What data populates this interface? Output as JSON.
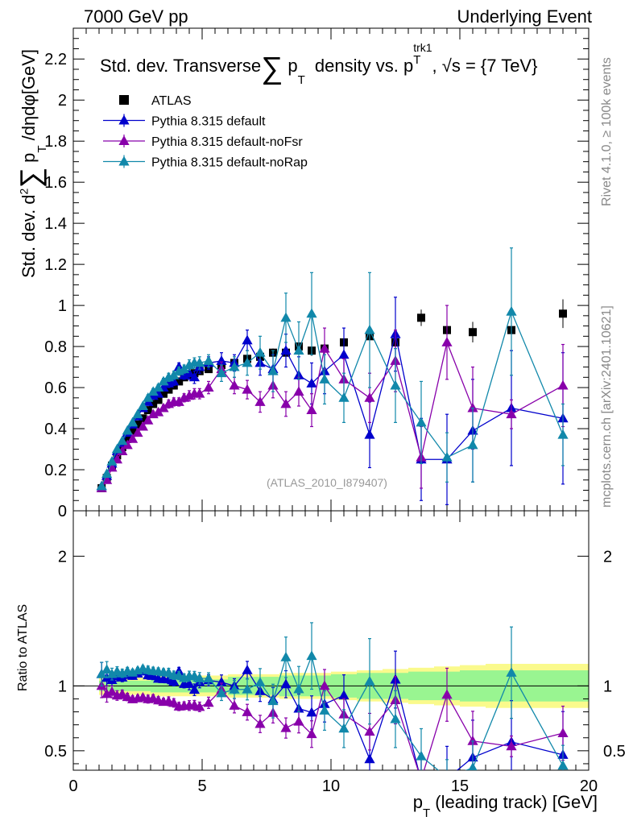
{
  "header": {
    "left_label": "7000 GeV pp",
    "right_label": "Underlying Event"
  },
  "side_labels": {
    "rivet": "Rivet 4.1.0, ≥ 100k events",
    "mcplots": "mcplots.cern.ch [arXiv:2401.10621]"
  },
  "chart_data": [
    {
      "type": "scatter",
      "panel": "main",
      "title": "Std. dev. Transverse ∑ p_T density vs. p_T^trk1, √s = {7 TeV}",
      "title_parts": {
        "a": "Std. dev. Transverse",
        "sum": "∑",
        "p": "p",
        "sub": "T",
        "b": "density vs. p",
        "sup2": "trk1",
        "sub2": "T",
        "c": ", √s = {7 TeV}"
      },
      "ylabel": "Std. dev. d² ∑ p_T /dηdφ[GeV]",
      "ylabel_parts": {
        "a": "Std. dev. d",
        "sup": "2",
        "sum": "∑",
        "p": "p",
        "sub": "T",
        "b": "/dηdφ[GeV]"
      },
      "xlim": [
        0,
        20
      ],
      "ylim": [
        0,
        2.35
      ],
      "yticks": [
        0,
        0.2,
        0.4,
        0.6,
        0.8,
        1,
        1.2,
        1.4,
        1.6,
        1.8,
        2,
        2.2
      ],
      "ytick_labels": [
        "0",
        "0.2",
        "0.4",
        "0.6",
        "0.8",
        "1",
        "1.2",
        "1.4",
        "1.6",
        "1.8",
        "2",
        "2.2"
      ],
      "watermark": "(ATLAS_2010_I879407)",
      "legend_position": "top-left",
      "series": [
        {
          "name": "ATLAS",
          "color": "#000000",
          "marker": "square",
          "x": [
            1.1,
            1.3,
            1.5,
            1.7,
            1.9,
            2.1,
            2.3,
            2.5,
            2.7,
            2.9,
            3.1,
            3.3,
            3.5,
            3.7,
            3.9,
            4.1,
            4.3,
            4.5,
            4.7,
            4.9,
            5.25,
            5.75,
            6.25,
            6.75,
            7.25,
            7.75,
            8.25,
            8.75,
            9.25,
            9.75,
            10.5,
            11.5,
            12.5,
            13.5,
            14.5,
            15.5,
            17.0,
            19.0
          ],
          "y": [
            0.11,
            0.16,
            0.22,
            0.27,
            0.31,
            0.35,
            0.39,
            0.42,
            0.45,
            0.49,
            0.52,
            0.54,
            0.57,
            0.59,
            0.61,
            0.63,
            0.65,
            0.66,
            0.67,
            0.68,
            0.69,
            0.71,
            0.72,
            0.74,
            0.75,
            0.77,
            0.77,
            0.8,
            0.78,
            0.79,
            0.82,
            0.85,
            0.82,
            0.94,
            0.88,
            0.87,
            0.88,
            0.96
          ],
          "yerr": [
            0.005,
            0.005,
            0.005,
            0.005,
            0.005,
            0.005,
            0.005,
            0.005,
            0.005,
            0.006,
            0.006,
            0.006,
            0.006,
            0.007,
            0.007,
            0.007,
            0.008,
            0.008,
            0.008,
            0.009,
            0.01,
            0.012,
            0.014,
            0.016,
            0.018,
            0.02,
            0.022,
            0.024,
            0.026,
            0.028,
            0.03,
            0.034,
            0.038,
            0.04,
            0.045,
            0.05,
            0.06,
            0.07
          ]
        },
        {
          "name": "Pythia 8.315 default",
          "color": "#0000cc",
          "marker": "triangle",
          "x": [
            1.1,
            1.3,
            1.5,
            1.7,
            1.9,
            2.1,
            2.3,
            2.5,
            2.7,
            2.9,
            3.1,
            3.3,
            3.5,
            3.7,
            3.9,
            4.1,
            4.3,
            4.5,
            4.7,
            4.9,
            5.25,
            5.75,
            6.25,
            6.75,
            7.25,
            7.75,
            8.25,
            8.75,
            9.25,
            9.75,
            10.5,
            11.5,
            12.5,
            13.5,
            14.5,
            15.5,
            17.0,
            19.0
          ],
          "y": [
            0.12,
            0.17,
            0.23,
            0.29,
            0.33,
            0.38,
            0.42,
            0.46,
            0.5,
            0.53,
            0.56,
            0.57,
            0.6,
            0.62,
            0.63,
            0.7,
            0.66,
            0.67,
            0.65,
            0.7,
            0.72,
            0.73,
            0.72,
            0.83,
            0.72,
            0.69,
            0.78,
            0.66,
            0.62,
            0.68,
            0.76,
            0.37,
            0.86,
            0.25,
            0.25,
            0.39,
            0.5,
            0.45
          ],
          "yerr": [
            0.01,
            0.01,
            0.01,
            0.01,
            0.01,
            0.01,
            0.01,
            0.01,
            0.01,
            0.015,
            0.015,
            0.015,
            0.015,
            0.02,
            0.02,
            0.02,
            0.02,
            0.03,
            0.03,
            0.03,
            0.03,
            0.04,
            0.04,
            0.05,
            0.06,
            0.07,
            0.08,
            0.09,
            0.1,
            0.11,
            0.13,
            0.16,
            0.18,
            0.2,
            0.22,
            0.25,
            0.28,
            0.32
          ]
        },
        {
          "name": "Pythia 8.315 default-noFsr",
          "color": "#8800aa",
          "marker": "triangle",
          "x": [
            1.1,
            1.3,
            1.5,
            1.7,
            1.9,
            2.1,
            2.3,
            2.5,
            2.7,
            2.9,
            3.1,
            3.3,
            3.5,
            3.7,
            3.9,
            4.1,
            4.3,
            4.5,
            4.7,
            4.9,
            5.25,
            5.75,
            6.25,
            6.75,
            7.25,
            7.75,
            8.25,
            8.75,
            9.25,
            9.75,
            10.5,
            11.5,
            12.5,
            13.5,
            14.5,
            15.5,
            17.0,
            19.0
          ],
          "y": [
            0.11,
            0.15,
            0.21,
            0.25,
            0.29,
            0.32,
            0.35,
            0.38,
            0.41,
            0.44,
            0.47,
            0.48,
            0.5,
            0.52,
            0.53,
            0.53,
            0.55,
            0.56,
            0.57,
            0.57,
            0.6,
            0.69,
            0.61,
            0.59,
            0.53,
            0.61,
            0.52,
            0.58,
            0.49,
            0.79,
            0.64,
            0.55,
            0.73,
            0.26,
            0.82,
            0.5,
            0.47,
            0.61
          ],
          "yerr": [
            0.01,
            0.01,
            0.01,
            0.01,
            0.01,
            0.01,
            0.01,
            0.01,
            0.01,
            0.015,
            0.015,
            0.015,
            0.015,
            0.02,
            0.02,
            0.02,
            0.02,
            0.025,
            0.025,
            0.025,
            0.03,
            0.035,
            0.04,
            0.045,
            0.05,
            0.06,
            0.06,
            0.07,
            0.08,
            0.1,
            0.1,
            0.12,
            0.15,
            0.15,
            0.18,
            0.2,
            0.07,
            0.2
          ]
        },
        {
          "name": "Pythia 8.315 default-noRap",
          "color": "#1188aa",
          "marker": "triangle",
          "x": [
            1.1,
            1.3,
            1.5,
            1.7,
            1.9,
            2.1,
            2.3,
            2.5,
            2.7,
            2.9,
            3.1,
            3.3,
            3.5,
            3.7,
            3.9,
            4.1,
            4.3,
            4.5,
            4.7,
            4.9,
            5.25,
            5.75,
            6.25,
            6.75,
            7.25,
            7.75,
            8.25,
            8.75,
            9.25,
            9.75,
            10.5,
            11.5,
            12.5,
            13.5,
            14.5,
            15.5,
            17.0,
            19.0
          ],
          "y": [
            0.12,
            0.18,
            0.24,
            0.3,
            0.34,
            0.39,
            0.43,
            0.47,
            0.51,
            0.55,
            0.58,
            0.6,
            0.63,
            0.65,
            0.66,
            0.68,
            0.69,
            0.71,
            0.72,
            0.72,
            0.73,
            0.67,
            0.7,
            0.72,
            0.77,
            0.68,
            0.94,
            0.78,
            0.96,
            0.64,
            0.55,
            0.88,
            0.61,
            0.43,
            0.26,
            0.32,
            0.97,
            0.37
          ],
          "yerr": [
            0.01,
            0.01,
            0.01,
            0.01,
            0.01,
            0.01,
            0.01,
            0.01,
            0.01,
            0.015,
            0.015,
            0.015,
            0.015,
            0.02,
            0.02,
            0.02,
            0.02,
            0.025,
            0.025,
            0.03,
            0.03,
            0.04,
            0.05,
            0.06,
            0.08,
            0.1,
            0.12,
            0.14,
            0.2,
            0.12,
            0.12,
            0.28,
            0.18,
            0.2,
            0.12,
            0.18,
            0.31,
            0.15
          ]
        }
      ]
    },
    {
      "type": "scatter",
      "panel": "ratio",
      "xlabel": "p_T (leading track) [GeV]",
      "xlabel_parts": {
        "p": "p",
        "sub": "T",
        "rest": "(leading track) [GeV]"
      },
      "ylabel": "Ratio to ATLAS",
      "xlim": [
        0,
        20
      ],
      "ylim": [
        0.35,
        2.35
      ],
      "xticks": [
        0,
        5,
        10,
        15,
        20
      ],
      "xtick_labels": [
        "0",
        "5",
        "10",
        "15",
        "20"
      ],
      "yticks": [
        0.5,
        1,
        2
      ],
      "ytick_labels": [
        "0.5",
        "1",
        "2"
      ],
      "uncertainty_bands": {
        "edges": [
          1.0,
          3.0,
          6.0,
          8.0,
          10.0,
          11.0,
          12.0,
          13.0,
          14.0,
          15.0,
          16.0,
          18.0,
          20.0
        ],
        "stat_sys_inner": [
          0.04,
          0.05,
          0.07,
          0.08,
          0.09,
          0.1,
          0.1,
          0.11,
          0.11,
          0.12,
          0.12,
          0.12
        ],
        "stat_sys_outer": [
          0.07,
          0.08,
          0.09,
          0.1,
          0.11,
          0.12,
          0.13,
          0.14,
          0.15,
          0.16,
          0.17,
          0.17
        ],
        "inner_color": "#99f591",
        "outer_color": "#fafa8c"
      }
    }
  ]
}
